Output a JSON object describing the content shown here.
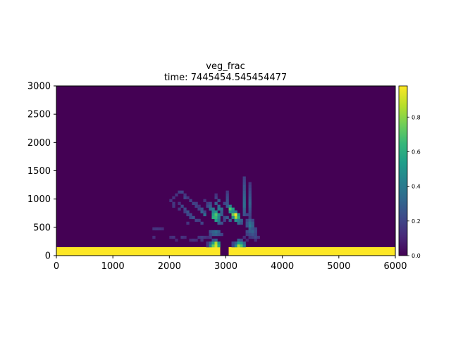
{
  "chart_data": {
    "type": "heatmap",
    "title": "veg_frac",
    "subtitle": "time: 7445454.545454477",
    "xlabel": "",
    "ylabel": "",
    "xlim": [
      0,
      6000
    ],
    "ylim": [
      0,
      3000
    ],
    "x_ticks": [
      0,
      1000,
      2000,
      3000,
      4000,
      5000,
      6000
    ],
    "y_ticks": [
      0,
      500,
      1000,
      1500,
      2000,
      2500,
      3000
    ],
    "x_tick_labels": [
      "0",
      "1000",
      "2000",
      "3000",
      "4000",
      "5000",
      "6000"
    ],
    "y_tick_labels": [
      "0",
      "500",
      "1000",
      "1500",
      "2000",
      "2500",
      "3000"
    ],
    "colorbar": {
      "min": 0.0,
      "max": 0.98,
      "ticks": [
        0.0,
        0.2,
        0.4,
        0.6,
        0.8
      ],
      "tick_labels": [
        "0.0",
        "0.2",
        "0.4",
        "0.6",
        "0.8"
      ],
      "colormap": "viridis"
    },
    "grid": false,
    "background_value": 0.0,
    "cell_size": [
      50,
      50
    ],
    "rect_regions": [
      {
        "x0": 0,
        "x1": 2900,
        "y0": 0,
        "y1": 150,
        "value": 0.98
      },
      {
        "x0": 3050,
        "x1": 6000,
        "y0": 0,
        "y1": 150,
        "value": 0.98
      }
    ],
    "cells": [
      [
        2150,
        1100,
        0.18
      ],
      [
        2200,
        1100,
        0.2
      ],
      [
        2100,
        1050,
        0.15
      ],
      [
        2250,
        1050,
        0.15
      ],
      [
        2050,
        1000,
        0.14
      ],
      [
        2250,
        1000,
        0.2
      ],
      [
        2300,
        1000,
        0.15
      ],
      [
        2000,
        950,
        0.15
      ],
      [
        2350,
        950,
        0.2
      ],
      [
        2050,
        900,
        0.16
      ],
      [
        2150,
        900,
        0.15
      ],
      [
        2400,
        900,
        0.2
      ],
      [
        2450,
        900,
        0.18
      ],
      [
        2050,
        850,
        0.15
      ],
      [
        2200,
        850,
        0.22
      ],
      [
        2450,
        850,
        0.2
      ],
      [
        2500,
        850,
        0.15
      ],
      [
        2150,
        800,
        0.16
      ],
      [
        2250,
        800,
        0.22
      ],
      [
        2500,
        800,
        0.2
      ],
      [
        2550,
        800,
        0.25
      ],
      [
        2250,
        750,
        0.18
      ],
      [
        2300,
        750,
        0.25
      ],
      [
        2550,
        750,
        0.3
      ],
      [
        2600,
        750,
        0.2
      ],
      [
        2300,
        700,
        0.2
      ],
      [
        2350,
        700,
        0.22
      ],
      [
        2600,
        700,
        0.35
      ],
      [
        2350,
        650,
        0.2
      ],
      [
        2400,
        650,
        0.25
      ],
      [
        2450,
        600,
        0.2
      ],
      [
        2500,
        600,
        0.18
      ],
      [
        2300,
        550,
        0.15
      ],
      [
        2550,
        550,
        0.2
      ],
      [
        2600,
        950,
        0.14
      ],
      [
        2650,
        900,
        0.18
      ],
      [
        2700,
        900,
        0.22
      ],
      [
        2650,
        850,
        0.22
      ],
      [
        2700,
        850,
        0.28
      ],
      [
        2700,
        800,
        0.35
      ],
      [
        2750,
        800,
        0.4
      ],
      [
        2750,
        750,
        0.45
      ],
      [
        2800,
        750,
        0.5
      ],
      [
        2750,
        700,
        0.55
      ],
      [
        2800,
        700,
        0.7
      ],
      [
        2850,
        700,
        0.5
      ],
      [
        2750,
        650,
        0.6
      ],
      [
        2800,
        650,
        0.65
      ],
      [
        2850,
        650,
        0.45
      ],
      [
        2800,
        600,
        0.55
      ],
      [
        2850,
        600,
        0.4
      ],
      [
        2850,
        550,
        0.3
      ],
      [
        2900,
        550,
        0.25
      ],
      [
        2800,
        900,
        0.3
      ],
      [
        2850,
        850,
        0.35
      ],
      [
        2850,
        800,
        0.4
      ],
      [
        2900,
        800,
        0.35
      ],
      [
        2900,
        750,
        0.3
      ],
      [
        2900,
        700,
        0.28
      ],
      [
        2950,
        650,
        0.22
      ],
      [
        2950,
        600,
        0.2
      ],
      [
        2850,
        950,
        0.25
      ],
      [
        2800,
        1000,
        0.18
      ],
      [
        2950,
        900,
        0.2
      ],
      [
        3000,
        900,
        0.25
      ],
      [
        3000,
        850,
        0.3
      ],
      [
        3050,
        850,
        0.45
      ],
      [
        3050,
        800,
        0.7
      ],
      [
        3100,
        800,
        0.55
      ],
      [
        3050,
        750,
        0.5
      ],
      [
        3100,
        750,
        0.45
      ],
      [
        3150,
        750,
        0.4
      ],
      [
        3100,
        700,
        0.75
      ],
      [
        3150,
        700,
        0.95
      ],
      [
        3150,
        650,
        0.85
      ],
      [
        3200,
        650,
        0.6
      ],
      [
        3100,
        650,
        0.45
      ],
      [
        3200,
        700,
        0.5
      ],
      [
        3150,
        600,
        0.5
      ],
      [
        3200,
        600,
        0.4
      ],
      [
        3200,
        550,
        0.35
      ],
      [
        3250,
        550,
        0.25
      ],
      [
        3050,
        600,
        0.3
      ],
      [
        3000,
        650,
        0.28
      ],
      [
        3250,
        600,
        0.3
      ],
      [
        2800,
        1050,
        0.14
      ],
      [
        3000,
        1100,
        0.16
      ],
      [
        3000,
        1050,
        0.2
      ],
      [
        3000,
        1000,
        0.22
      ],
      [
        3000,
        950,
        0.24
      ],
      [
        3300,
        1350,
        0.18
      ],
      [
        3300,
        1300,
        0.2
      ],
      [
        3300,
        1250,
        0.22
      ],
      [
        3300,
        1200,
        0.25
      ],
      [
        3300,
        1150,
        0.25
      ],
      [
        3300,
        1100,
        0.28
      ],
      [
        3300,
        1050,
        0.3
      ],
      [
        3300,
        1000,
        0.32
      ],
      [
        3300,
        950,
        0.33
      ],
      [
        3300,
        900,
        0.35
      ],
      [
        3300,
        850,
        0.35
      ],
      [
        3300,
        800,
        0.3
      ],
      [
        3300,
        750,
        0.28
      ],
      [
        3300,
        700,
        0.25
      ],
      [
        3350,
        700,
        0.2
      ],
      [
        3400,
        1250,
        0.15
      ],
      [
        3400,
        1200,
        0.18
      ],
      [
        3400,
        1150,
        0.2
      ],
      [
        3400,
        1100,
        0.22
      ],
      [
        3400,
        1050,
        0.24
      ],
      [
        3400,
        1000,
        0.26
      ],
      [
        3400,
        950,
        0.28
      ],
      [
        3400,
        900,
        0.3
      ],
      [
        3400,
        850,
        0.28
      ],
      [
        3400,
        800,
        0.25
      ],
      [
        3400,
        750,
        0.22
      ],
      [
        3400,
        700,
        0.2
      ],
      [
        3400,
        650,
        0.18
      ],
      [
        3350,
        600,
        0.2
      ],
      [
        3400,
        600,
        0.28
      ],
      [
        3450,
        600,
        0.2
      ],
      [
        3350,
        550,
        0.25
      ],
      [
        3400,
        550,
        0.35
      ],
      [
        3450,
        550,
        0.28
      ],
      [
        3400,
        500,
        0.4
      ],
      [
        3450,
        500,
        0.3
      ],
      [
        3350,
        500,
        0.25
      ],
      [
        3400,
        450,
        0.3
      ],
      [
        3450,
        450,
        0.25
      ],
      [
        3500,
        450,
        0.2
      ],
      [
        3350,
        400,
        0.22
      ],
      [
        3400,
        400,
        0.28
      ],
      [
        3450,
        400,
        0.3
      ],
      [
        3500,
        400,
        0.22
      ],
      [
        3350,
        350,
        0.18
      ],
      [
        3400,
        350,
        0.22
      ],
      [
        3450,
        350,
        0.25
      ],
      [
        3500,
        350,
        0.2
      ],
      [
        3450,
        300,
        0.18
      ],
      [
        3500,
        300,
        0.22
      ],
      [
        3550,
        300,
        0.15
      ],
      [
        3400,
        300,
        0.15
      ],
      [
        3500,
        250,
        0.12
      ],
      [
        3300,
        300,
        0.12
      ],
      [
        3350,
        250,
        0.1
      ],
      [
        1700,
        450,
        0.14
      ],
      [
        1750,
        450,
        0.15
      ],
      [
        1800,
        450,
        0.14
      ],
      [
        1850,
        450,
        0.12
      ],
      [
        1700,
        300,
        0.12
      ],
      [
        2000,
        300,
        0.12
      ],
      [
        2050,
        300,
        0.14
      ],
      [
        2200,
        300,
        0.15
      ],
      [
        2250,
        300,
        0.12
      ],
      [
        2100,
        250,
        0.1
      ],
      [
        2350,
        250,
        0.12
      ],
      [
        2400,
        250,
        0.14
      ],
      [
        2450,
        250,
        0.12
      ],
      [
        2500,
        300,
        0.15
      ],
      [
        2550,
        300,
        0.18
      ],
      [
        2600,
        300,
        0.15
      ],
      [
        2650,
        300,
        0.12
      ],
      [
        2700,
        300,
        0.15
      ],
      [
        2550,
        250,
        0.14
      ],
      [
        2700,
        400,
        0.25
      ],
      [
        2750,
        400,
        0.3
      ],
      [
        2800,
        400,
        0.35
      ],
      [
        2850,
        400,
        0.28
      ],
      [
        2750,
        350,
        0.28
      ],
      [
        2800,
        350,
        0.3
      ],
      [
        2700,
        350,
        0.2
      ],
      [
        2850,
        350,
        0.25
      ],
      [
        2900,
        350,
        0.2
      ],
      [
        2700,
        150,
        0.45
      ],
      [
        2750,
        150,
        0.75
      ],
      [
        2800,
        150,
        0.9
      ],
      [
        2850,
        150,
        0.6
      ],
      [
        2700,
        200,
        0.3
      ],
      [
        2750,
        200,
        0.55
      ],
      [
        2800,
        200,
        0.85
      ],
      [
        2850,
        200,
        0.5
      ],
      [
        2750,
        250,
        0.25
      ],
      [
        2800,
        250,
        0.3
      ],
      [
        2650,
        150,
        0.15
      ],
      [
        2650,
        200,
        0.15
      ],
      [
        3150,
        150,
        0.45
      ],
      [
        3200,
        150,
        0.85
      ],
      [
        3250,
        150,
        0.7
      ],
      [
        3300,
        150,
        0.4
      ],
      [
        3100,
        150,
        0.2
      ],
      [
        3150,
        200,
        0.3
      ],
      [
        3200,
        200,
        0.55
      ],
      [
        3250,
        200,
        0.5
      ],
      [
        3300,
        200,
        0.3
      ],
      [
        3200,
        250,
        0.3
      ],
      [
        3250,
        250,
        0.22
      ],
      [
        3100,
        200,
        0.2
      ]
    ]
  }
}
